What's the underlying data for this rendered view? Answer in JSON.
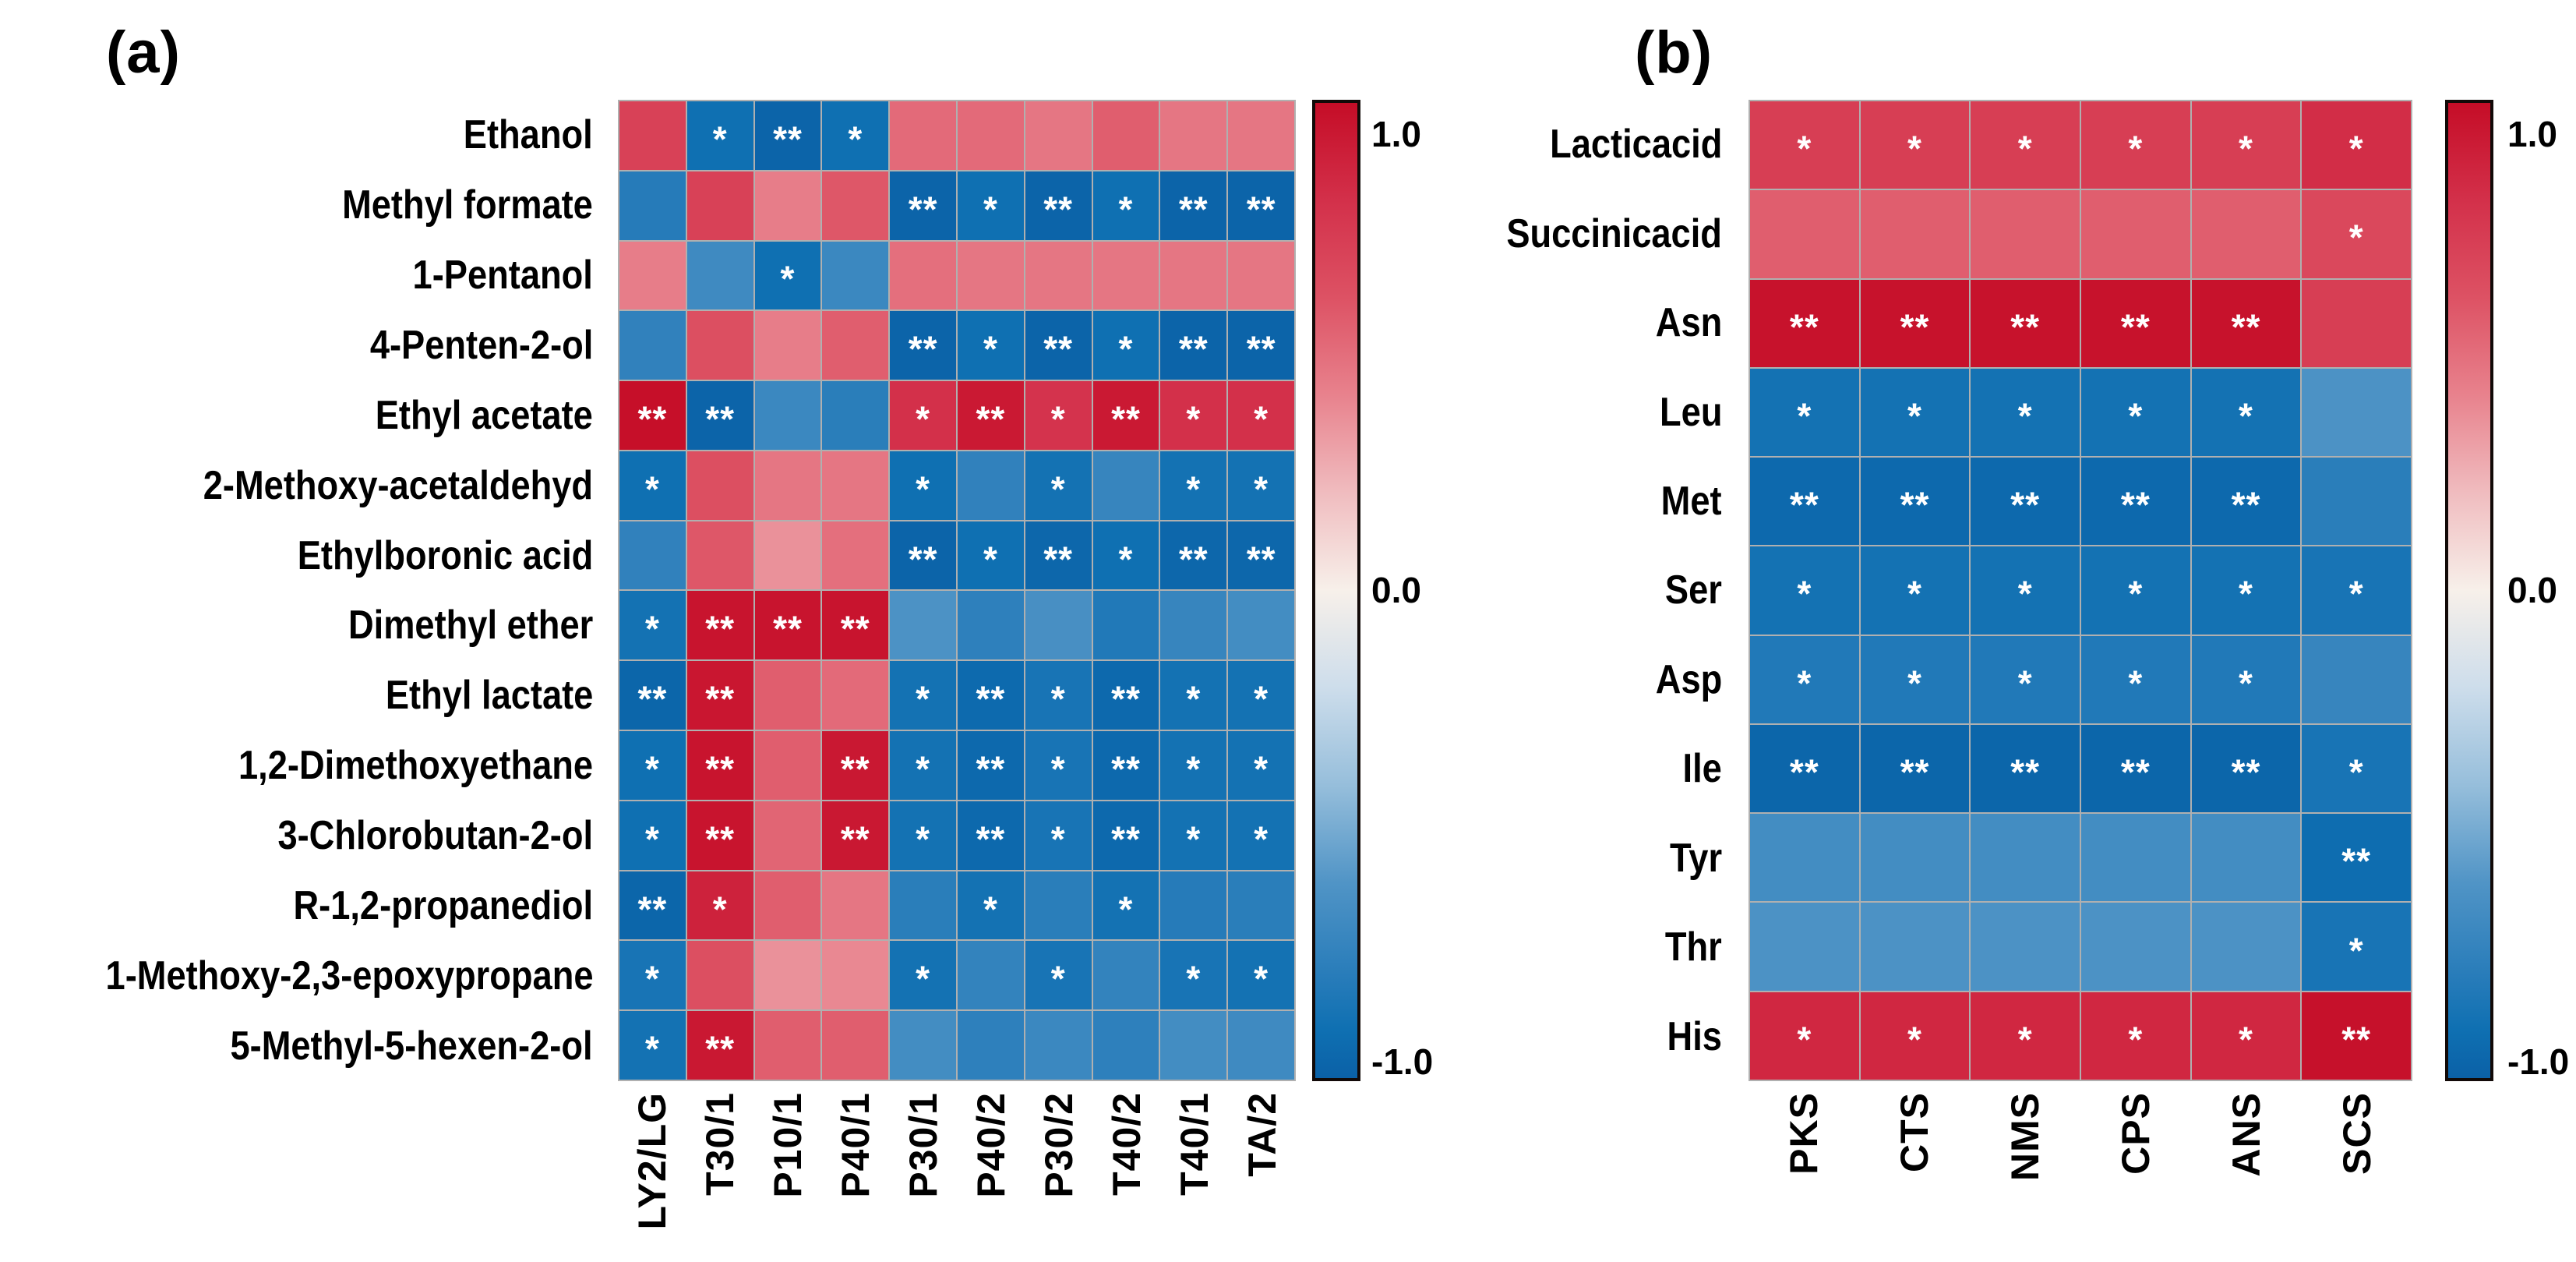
{
  "colormap_stops": [
    [
      1.0,
      "#c50d27"
    ],
    [
      0.8,
      "#d3304a"
    ],
    [
      0.6,
      "#dd5264"
    ],
    [
      0.4,
      "#e8828d"
    ],
    [
      0.2,
      "#f0bcbf"
    ],
    [
      0.0,
      "#f7f0ea"
    ],
    [
      -0.2,
      "#cdddeb"
    ],
    [
      -0.4,
      "#96bedb"
    ],
    [
      -0.6,
      "#5094c6"
    ],
    [
      -0.8,
      "#267bb9"
    ],
    [
      -0.9,
      "#0f70b2"
    ],
    [
      -1.0,
      "#0b61a7"
    ]
  ],
  "grid_line_color": "#b0b0b0",
  "significance_color": "#ffffff",
  "chart_data": [
    {
      "type": "heatmap",
      "panel_label": "(a)",
      "columns": [
        "LY2/LG",
        "T30/1",
        "P10/1",
        "P40/1",
        "P30/1",
        "P40/2",
        "P30/2",
        "T40/2",
        "T40/1",
        "TA/2"
      ],
      "rows": [
        "Ethanol",
        "Methyl formate",
        "1-Pentanol",
        "4-Penten-2-ol",
        "Ethyl acetate",
        "2-Methoxy-acetaldehyd",
        "Ethylboronic acid",
        "Dimethyl ether",
        "Ethyl lactate",
        "1,2-Dimethoxyethane",
        "3-Chlorobutan-2-ol",
        "R-1,2-propanediol",
        "1-Methoxy-2,3-epoxypropane",
        "5-Methyl-5-hexen-2-ol"
      ],
      "values": [
        [
          0.7,
          -0.9,
          -0.98,
          -0.9,
          0.5,
          0.5,
          0.45,
          0.55,
          0.45,
          0.45
        ],
        [
          -0.8,
          0.7,
          0.42,
          0.58,
          -0.98,
          -0.9,
          -0.98,
          -0.9,
          -0.98,
          -0.98
        ],
        [
          0.42,
          -0.68,
          -0.9,
          -0.7,
          0.48,
          0.45,
          0.45,
          0.45,
          0.45,
          0.45
        ],
        [
          -0.75,
          0.62,
          0.42,
          0.55,
          -0.98,
          -0.9,
          -0.98,
          -0.9,
          -0.98,
          -0.98
        ],
        [
          0.99,
          -0.98,
          -0.7,
          -0.78,
          0.8,
          0.93,
          0.78,
          0.93,
          0.8,
          0.8
        ],
        [
          -0.9,
          0.62,
          0.45,
          0.45,
          -0.9,
          -0.75,
          -0.88,
          -0.72,
          -0.88,
          -0.88
        ],
        [
          -0.75,
          0.58,
          0.35,
          0.48,
          -0.98,
          -0.9,
          -0.96,
          -0.9,
          -0.96,
          -0.96
        ],
        [
          -0.88,
          0.96,
          0.96,
          0.96,
          -0.62,
          -0.76,
          -0.64,
          -0.82,
          -0.72,
          -0.66
        ],
        [
          -0.97,
          0.95,
          0.55,
          0.5,
          -0.88,
          -0.94,
          -0.86,
          -0.95,
          -0.88,
          -0.88
        ],
        [
          -0.9,
          0.96,
          0.55,
          0.94,
          -0.88,
          -0.95,
          -0.86,
          -0.95,
          -0.88,
          -0.88
        ],
        [
          -0.9,
          0.96,
          0.52,
          0.94,
          -0.88,
          -0.95,
          -0.86,
          -0.95,
          -0.88,
          -0.88
        ],
        [
          -0.97,
          0.88,
          0.55,
          0.45,
          -0.78,
          -0.88,
          -0.78,
          -0.88,
          -0.8,
          -0.78
        ],
        [
          -0.86,
          0.62,
          0.35,
          0.38,
          -0.88,
          -0.74,
          -0.86,
          -0.74,
          -0.86,
          -0.88
        ],
        [
          -0.88,
          0.94,
          0.55,
          0.55,
          -0.66,
          -0.76,
          -0.7,
          -0.76,
          -0.66,
          -0.68
        ]
      ],
      "significance": [
        [
          "",
          "*",
          "**",
          "*",
          "",
          "",
          "",
          "",
          "",
          ""
        ],
        [
          "",
          "",
          "",
          "",
          "**",
          "*",
          "**",
          "*",
          "**",
          "**"
        ],
        [
          "",
          "",
          "*",
          "",
          "",
          "",
          "",
          "",
          "",
          ""
        ],
        [
          "",
          "",
          "",
          "",
          "**",
          "*",
          "**",
          "*",
          "**",
          "**"
        ],
        [
          "**",
          "**",
          "",
          "",
          "*",
          "**",
          "*",
          "**",
          "*",
          "*"
        ],
        [
          "*",
          "",
          "",
          "",
          "*",
          "",
          "*",
          "",
          "*",
          "*"
        ],
        [
          "",
          "",
          "",
          "",
          "**",
          "*",
          "**",
          "*",
          "**",
          "**"
        ],
        [
          "*",
          "**",
          "**",
          "**",
          "",
          "",
          "",
          "",
          "",
          ""
        ],
        [
          "**",
          "**",
          "",
          "",
          "*",
          "**",
          "*",
          "**",
          "*",
          "*"
        ],
        [
          "*",
          "**",
          "",
          "**",
          "*",
          "**",
          "*",
          "**",
          "*",
          "*"
        ],
        [
          "*",
          "**",
          "",
          "**",
          "*",
          "**",
          "*",
          "**",
          "*",
          "*"
        ],
        [
          "**",
          "*",
          "",
          "",
          "",
          "*",
          "",
          "*",
          "",
          ""
        ],
        [
          "*",
          "",
          "",
          "",
          "*",
          "",
          "*",
          "",
          "*",
          "*"
        ],
        [
          "*",
          "**",
          "",
          "",
          "",
          "",
          "",
          "",
          "",
          ""
        ]
      ],
      "value_range": [
        -1.0,
        1.0
      ],
      "colorbar_ticks": {
        "max": "1.0",
        "mid": "0.0",
        "min": "-1.0"
      }
    },
    {
      "type": "heatmap",
      "panel_label": "(b)",
      "columns": [
        "PKS",
        "CTS",
        "NMS",
        "CPS",
        "ANS",
        "SCS"
      ],
      "rows": [
        "Lacticacid",
        "Succinicacid",
        "Asn",
        "Leu",
        "Met",
        "Ser",
        "Asp",
        "Ile",
        "Tyr",
        "Thr",
        "His"
      ],
      "values": [
        [
          0.72,
          0.72,
          0.72,
          0.72,
          0.72,
          0.82
        ],
        [
          0.55,
          0.55,
          0.55,
          0.55,
          0.55,
          0.66
        ],
        [
          0.97,
          0.97,
          0.97,
          0.97,
          0.97,
          0.72
        ],
        [
          -0.88,
          -0.88,
          -0.88,
          -0.88,
          -0.88,
          -0.62
        ],
        [
          -0.95,
          -0.95,
          -0.95,
          -0.95,
          -0.95,
          -0.78
        ],
        [
          -0.88,
          -0.88,
          -0.88,
          -0.88,
          -0.88,
          -0.86
        ],
        [
          -0.82,
          -0.82,
          -0.82,
          -0.82,
          -0.82,
          -0.72
        ],
        [
          -0.97,
          -0.97,
          -0.97,
          -0.97,
          -0.97,
          -0.86
        ],
        [
          -0.66,
          -0.66,
          -0.66,
          -0.66,
          -0.66,
          -0.92
        ],
        [
          -0.62,
          -0.62,
          -0.62,
          -0.62,
          -0.62,
          -0.86
        ],
        [
          0.85,
          0.85,
          0.85,
          0.85,
          0.85,
          0.98
        ]
      ],
      "significance": [
        [
          "*",
          "*",
          "*",
          "*",
          "*",
          "*"
        ],
        [
          "",
          "",
          "",
          "",
          "",
          "*"
        ],
        [
          "**",
          "**",
          "**",
          "**",
          "**",
          ""
        ],
        [
          "*",
          "*",
          "*",
          "*",
          "*",
          ""
        ],
        [
          "**",
          "**",
          "**",
          "**",
          "**",
          ""
        ],
        [
          "*",
          "*",
          "*",
          "*",
          "*",
          "*"
        ],
        [
          "*",
          "*",
          "*",
          "*",
          "*",
          ""
        ],
        [
          "**",
          "**",
          "**",
          "**",
          "**",
          "*"
        ],
        [
          "",
          "",
          "",
          "",
          "",
          "**"
        ],
        [
          "",
          "",
          "",
          "",
          "",
          "*"
        ],
        [
          "*",
          "*",
          "*",
          "*",
          "*",
          "**"
        ]
      ],
      "value_range": [
        -1.0,
        1.0
      ],
      "colorbar_ticks": {
        "max": "1.0",
        "mid": "0.0",
        "min": "-1.0"
      }
    }
  ]
}
